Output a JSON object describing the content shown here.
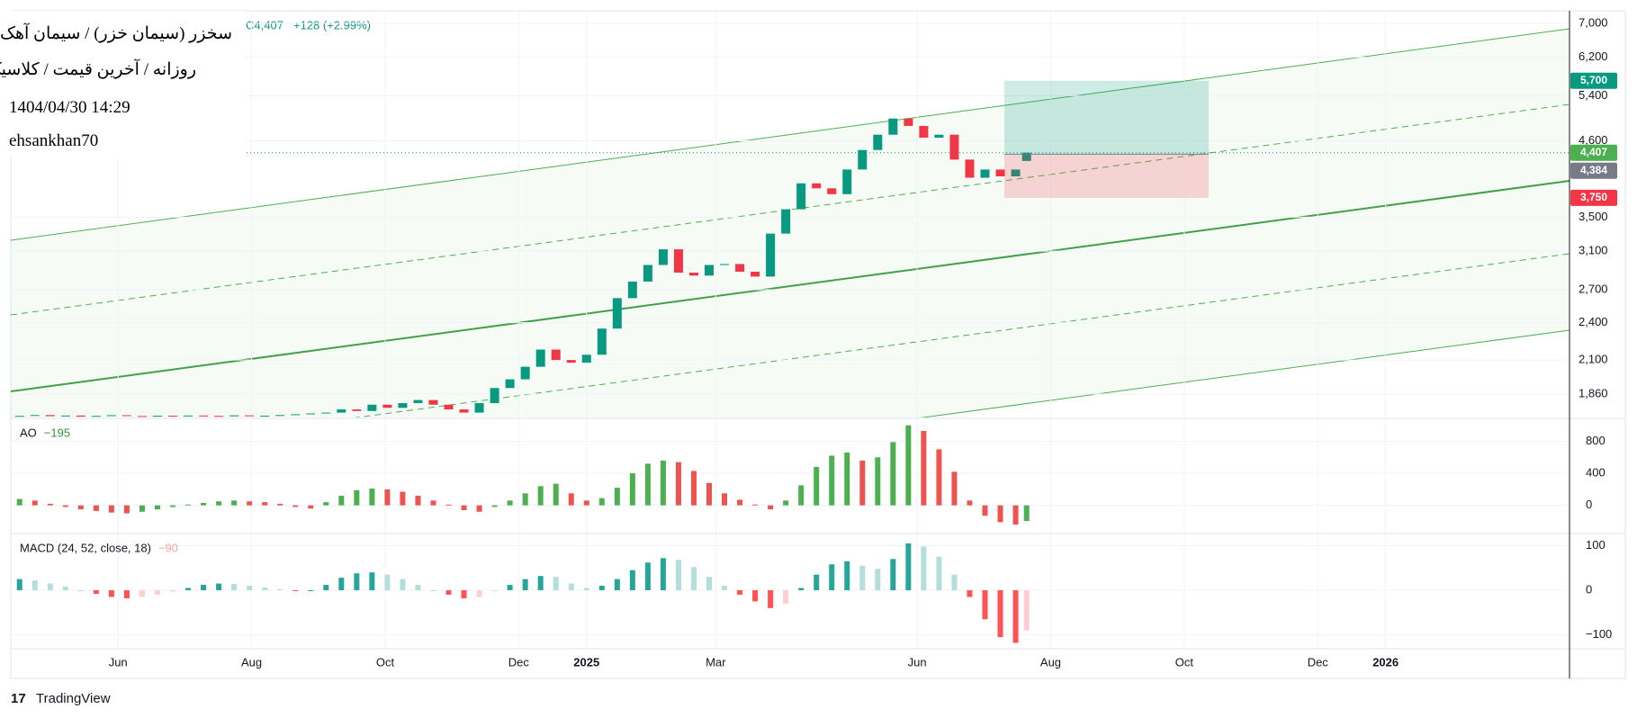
{
  "header": {
    "symbol": "سخزر (سیمان خزر) / سیمان آهک گچ",
    "settings": "روزانه / آخرین قیمت / کلاسیک",
    "datetime": "1404/04/30 14:29",
    "author": "ehsankhan70",
    "ohlc_close": "C4,407",
    "change": "+128 (+2.99%)"
  },
  "footer": {
    "logo": "TradingView"
  },
  "chart_data": [
    {
      "type": "candlestick",
      "x": [
        "2024-04-17",
        "2024-04-24",
        "2024-05-01",
        "2024-05-08",
        "2024-05-15",
        "2024-05-22",
        "2024-05-29",
        "2024-06-05",
        "2024-06-12",
        "2024-06-19",
        "2024-06-26",
        "2024-07-03",
        "2024-07-10",
        "2024-07-17",
        "2024-07-24",
        "2024-07-31",
        "2024-08-07",
        "2024-08-14",
        "2024-08-21",
        "2024-08-28",
        "2024-09-04",
        "2024-09-11",
        "2024-09-18",
        "2024-09-25",
        "2024-10-02",
        "2024-10-09",
        "2024-10-16",
        "2024-10-23",
        "2024-10-30",
        "2024-11-06",
        "2024-11-13",
        "2024-11-20",
        "2024-11-27",
        "2024-12-04",
        "2024-12-11",
        "2024-12-18",
        "2024-12-25",
        "2025-01-01",
        "2025-01-08",
        "2025-01-15",
        "2025-01-22",
        "2025-01-29",
        "2025-02-05",
        "2025-02-12",
        "2025-02-19",
        "2025-02-26",
        "2025-03-05",
        "2025-03-12",
        "2025-03-19",
        "2025-03-26",
        "2025-04-02",
        "2025-04-09",
        "2025-04-16",
        "2025-04-23",
        "2025-04-30",
        "2025-05-07",
        "2025-05-14",
        "2025-05-21",
        "2025-05-28",
        "2025-06-04",
        "2025-06-11",
        "2025-06-18",
        "2025-06-25",
        "2025-07-02",
        "2025-07-09",
        "2025-07-16",
        "2025-07-21"
      ],
      "open": [
        1718,
        1720,
        1725,
        1718,
        1722,
        1715,
        1720,
        1724,
        1719,
        1716,
        1721,
        1718,
        1722,
        1720,
        1717,
        1723,
        1719,
        1721,
        1725,
        1730,
        1735,
        1740,
        1760,
        1750,
        1790,
        1770,
        1800,
        1820,
        1790,
        1760,
        1740,
        1800,
        1900,
        1960,
        2050,
        2180,
        2100,
        2080,
        2140,
        2350,
        2620,
        2780,
        2950,
        3120,
        2870,
        2840,
        2950,
        2960,
        2880,
        2830,
        3300,
        3600,
        3950,
        3880,
        3800,
        4150,
        4450,
        4700,
        4980,
        4850,
        4650,
        4700,
        4300,
        4030,
        4150,
        4050,
        4279
      ],
      "close": [
        1720,
        1725,
        1718,
        1722,
        1715,
        1720,
        1724,
        1719,
        1716,
        1721,
        1718,
        1722,
        1720,
        1717,
        1723,
        1719,
        1721,
        1725,
        1730,
        1735,
        1740,
        1760,
        1750,
        1790,
        1770,
        1800,
        1820,
        1790,
        1760,
        1740,
        1800,
        1900,
        1960,
        2050,
        2180,
        2100,
        2080,
        2140,
        2350,
        2620,
        2780,
        2950,
        3120,
        2870,
        2840,
        2950,
        2960,
        2880,
        2830,
        3300,
        3600,
        3950,
        3880,
        3800,
        4150,
        4450,
        4700,
        4980,
        4850,
        4650,
        4700,
        4300,
        4030,
        4150,
        4050,
        4150,
        4407
      ],
      "up_color": "#089981",
      "down_color": "#f23645",
      "xlim": [
        "2024-04-13",
        "2026-03-26"
      ],
      "xticks": [
        {
          "value": "2024-06",
          "label": "Jun"
        },
        {
          "value": "2024-08",
          "label": "Aug"
        },
        {
          "value": "2024-10",
          "label": "Oct"
        },
        {
          "value": "2024-12",
          "label": "Dec"
        },
        {
          "value": "2025-01",
          "label": "2025"
        },
        {
          "value": "2025-03",
          "label": "Mar"
        },
        {
          "value": "2025-06",
          "label": "Jun"
        },
        {
          "value": "2025-08",
          "label": "Aug"
        },
        {
          "value": "2025-10",
          "label": "Oct"
        },
        {
          "value": "2025-12",
          "label": "Dec"
        },
        {
          "value": "2026-01",
          "label": "2026"
        }
      ],
      "ylim": [
        1710,
        7320
      ],
      "log_scale": true,
      "grid": true,
      "yticks": [
        {
          "value": 1860,
          "label": "1,860"
        },
        {
          "value": 2100,
          "label": "2,100"
        },
        {
          "value": 2400,
          "label": "2,400"
        },
        {
          "value": 2700,
          "label": "2,700"
        },
        {
          "value": 3100,
          "label": "3,100"
        },
        {
          "value": 3500,
          "label": "3,500"
        },
        {
          "value": 4600,
          "label": "4,600"
        },
        {
          "value": 5400,
          "label": "5,400"
        },
        {
          "value": 6200,
          "label": "6,200"
        },
        {
          "value": 7000,
          "label": "7,000"
        }
      ],
      "price_labels": [
        {
          "value": 5700,
          "label": "5,700",
          "color": "#089981"
        },
        {
          "value": 4407,
          "label": "4,407",
          "color": "#4caf50"
        },
        {
          "value": 4384,
          "label": "4,384",
          "color": "#787b86"
        },
        {
          "value": 3750,
          "label": "3,750",
          "color": "#f23645"
        }
      ]
    },
    {
      "type": "histogram",
      "title": "AO",
      "last_label": "−195",
      "last_color": "#388e3c",
      "values": [
        80,
        60,
        20,
        -20,
        -50,
        -70,
        -90,
        -100,
        -80,
        -50,
        -20,
        10,
        30,
        50,
        60,
        50,
        40,
        20,
        -20,
        -40,
        40,
        120,
        190,
        210,
        200,
        170,
        120,
        60,
        10,
        -60,
        -80,
        -20,
        60,
        150,
        240,
        270,
        150,
        60,
        90,
        220,
        400,
        520,
        560,
        540,
        430,
        280,
        150,
        70,
        10,
        -50,
        60,
        250,
        480,
        620,
        660,
        560,
        600,
        790,
        1000,
        930,
        700,
        420,
        60,
        -130,
        -210,
        -240,
        -195
      ],
      "colors": [
        "#4caf50",
        "#ef5350"
      ],
      "ylim": [
        -341,
        1075
      ],
      "yticks": [
        800,
        400,
        0
      ]
    },
    {
      "type": "histogram",
      "title": "MACD (24, 52, close, 18)",
      "last_label": "−90",
      "last_color": "#f7a5a5",
      "values": [
        25,
        22,
        15,
        8,
        0,
        -8,
        -15,
        -18,
        -15,
        -10,
        -3,
        5,
        12,
        15,
        14,
        10,
        6,
        2,
        -2,
        0,
        12,
        28,
        38,
        40,
        35,
        25,
        12,
        0,
        -10,
        -18,
        -15,
        -2,
        12,
        25,
        32,
        30,
        15,
        5,
        10,
        25,
        45,
        62,
        72,
        68,
        52,
        30,
        10,
        -10,
        -25,
        -40,
        -30,
        5,
        35,
        58,
        65,
        55,
        48,
        70,
        105,
        98,
        75,
        35,
        -15,
        -65,
        -105,
        -118,
        -90
      ],
      "colors": [
        "#26a69a",
        "#b2dfdb",
        "#ffcdd2",
        "#ff5252"
      ],
      "ylim": [
        -129,
        125
      ],
      "yticks": [
        100,
        0,
        {
          "value": -100,
          "label": "−100"
        }
      ]
    }
  ]
}
